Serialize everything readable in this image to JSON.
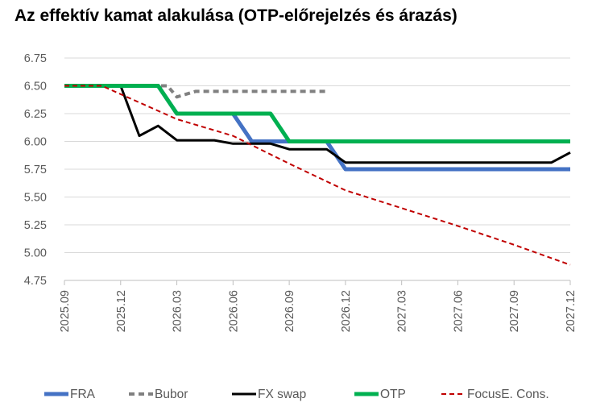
{
  "chart_data": {
    "type": "line",
    "title": "Az effektív kamat alakulása (OTP-előrejelzés és árazás)",
    "ylim": [
      4.75,
      6.75
    ],
    "yticks": [
      "6.75",
      "6.50",
      "6.25",
      "6.00",
      "5.75",
      "5.50",
      "5.25",
      "5.00",
      "4.75"
    ],
    "xlim": [
      0,
      27
    ],
    "xticks": [
      {
        "label": "2025.09",
        "x": 0
      },
      {
        "label": "2025.12",
        "x": 3
      },
      {
        "label": "2026.03",
        "x": 6
      },
      {
        "label": "2026.06",
        "x": 9
      },
      {
        "label": "2026.09",
        "x": 12
      },
      {
        "label": "2026.12",
        "x": 15
      },
      {
        "label": "2027.03",
        "x": 18
      },
      {
        "label": "2027.06",
        "x": 21
      },
      {
        "label": "2027.09",
        "x": 24
      },
      {
        "label": "2027.12",
        "x": 27
      }
    ],
    "grid": true,
    "legend_position": "bottom",
    "series": [
      {
        "name": "FRA",
        "color": "#4472C4",
        "style": "solid-thick",
        "points": [
          [
            0,
            6.5
          ],
          [
            5,
            6.5
          ],
          [
            6,
            6.25
          ],
          [
            9,
            6.25
          ],
          [
            10,
            6.0
          ],
          [
            11.5,
            6.0
          ],
          [
            12,
            6.0
          ],
          [
            14,
            6.0
          ],
          [
            15,
            5.75
          ],
          [
            27,
            5.75
          ]
        ]
      },
      {
        "name": "Bubor",
        "color": "#808080",
        "style": "dash-thick",
        "points": [
          [
            0,
            6.5
          ],
          [
            5.5,
            6.5
          ],
          [
            6,
            6.4
          ],
          [
            7,
            6.45
          ],
          [
            14,
            6.45
          ]
        ]
      },
      {
        "name": "FX swap",
        "color": "#000000",
        "style": "solid",
        "points": [
          [
            0,
            6.5
          ],
          [
            3,
            6.5
          ],
          [
            4,
            6.05
          ],
          [
            5,
            6.14
          ],
          [
            6,
            6.01
          ],
          [
            8,
            6.01
          ],
          [
            9,
            5.98
          ],
          [
            11,
            5.98
          ],
          [
            12,
            5.93
          ],
          [
            14,
            5.93
          ],
          [
            15,
            5.81
          ],
          [
            26,
            5.81
          ],
          [
            27,
            5.9
          ]
        ]
      },
      {
        "name": "OTP",
        "color": "#00B050",
        "style": "solid-thick",
        "points": [
          [
            0,
            6.5
          ],
          [
            5,
            6.5
          ],
          [
            6,
            6.25
          ],
          [
            11,
            6.25
          ],
          [
            12,
            6.0
          ],
          [
            27,
            6.0
          ]
        ]
      },
      {
        "name": "FocusE. Cons.",
        "color": "#C00000",
        "style": "dash",
        "points": [
          [
            0,
            6.5
          ],
          [
            2,
            6.5
          ],
          [
            6,
            6.2
          ],
          [
            9,
            6.05
          ],
          [
            12,
            5.8
          ],
          [
            15,
            5.56
          ],
          [
            18,
            5.4
          ],
          [
            21,
            5.24
          ],
          [
            24,
            5.07
          ],
          [
            27,
            4.89
          ]
        ]
      }
    ]
  }
}
